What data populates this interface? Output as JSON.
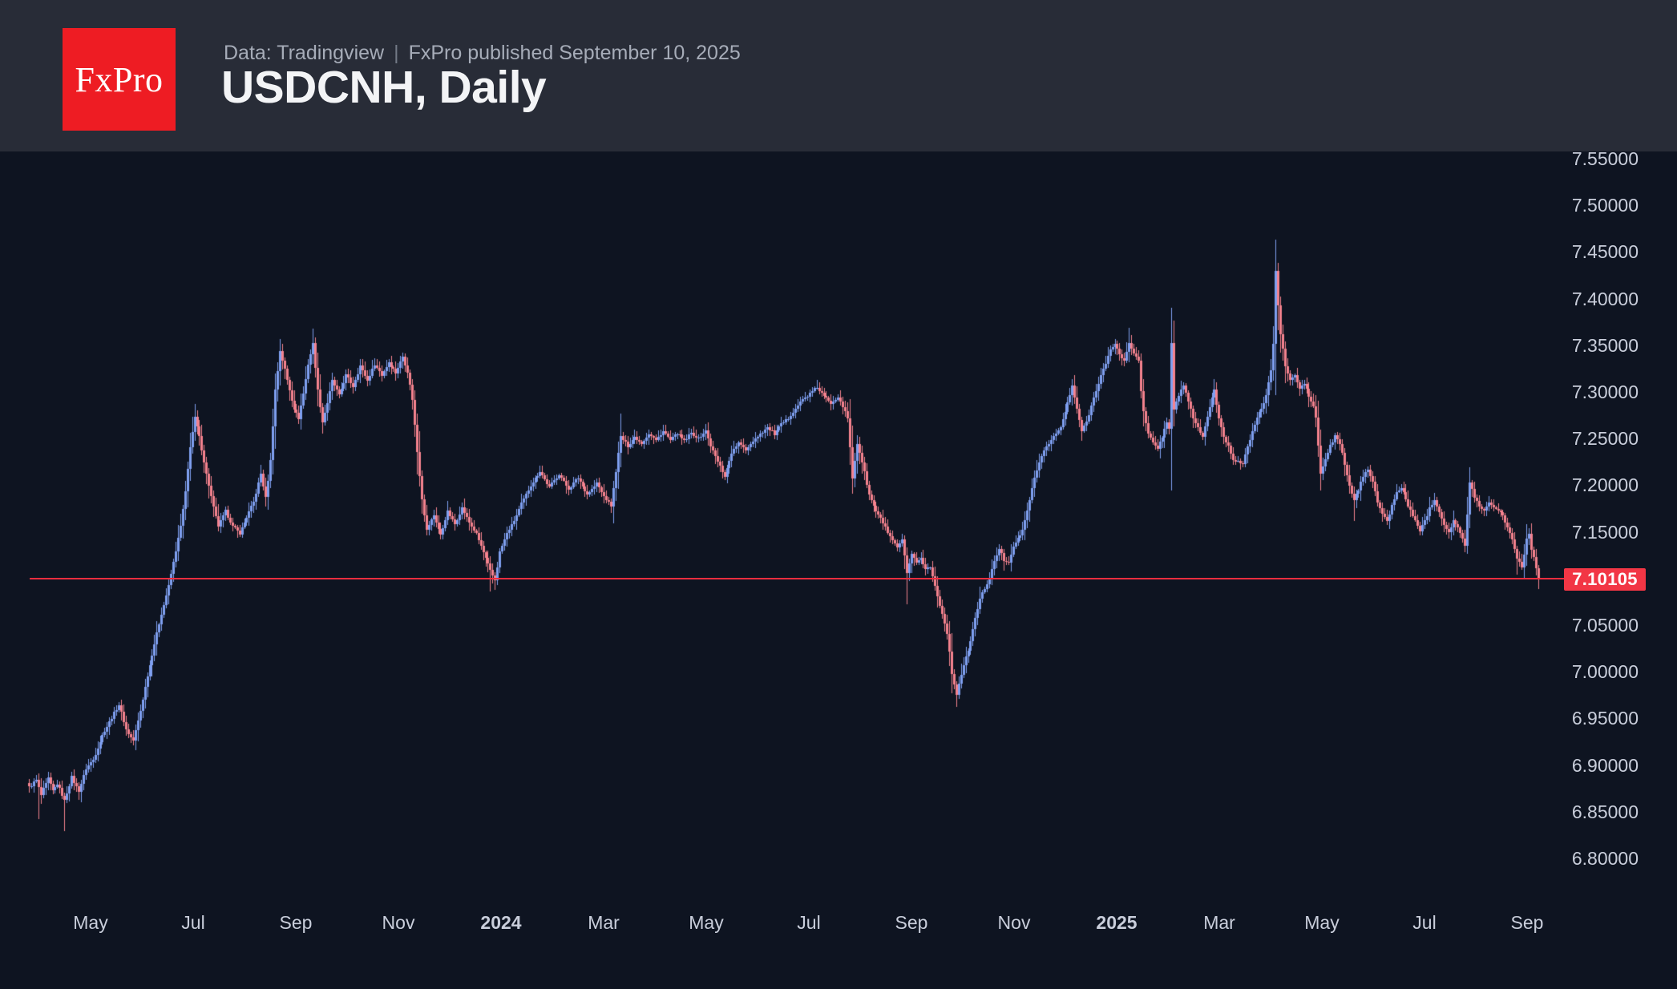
{
  "header": {
    "logo_text": "FxPro",
    "source_line": {
      "part1": "Data: Tradingview",
      "separator": "|",
      "part2": "FxPro published September 10, 2025"
    },
    "title": "USDCNH, Daily"
  },
  "chart_data": {
    "type": "candlestick",
    "symbol": "USDCNH",
    "timeframe": "Daily",
    "grid": "off",
    "legend": "none",
    "colors": {
      "up_candle": "#7f9ff0",
      "down_candle": "#f4828e",
      "price_line": "#ef2d3f",
      "price_tag_bg": "#f23645",
      "axis_text": "#c9cedb",
      "background": "#0e1421",
      "header_bg": "#282c37",
      "logo_bg": "#ee1c23"
    },
    "price_line": {
      "value": 7.10105,
      "label": "7.10105"
    },
    "y_axis": {
      "side": "right",
      "decimals": 5,
      "tick_step": 0.05,
      "ticks": [
        7.55,
        7.5,
        7.45,
        7.4,
        7.35,
        7.3,
        7.25,
        7.2,
        7.15,
        7.05,
        7.0,
        6.95,
        6.9,
        6.85,
        6.8
      ],
      "visible_range": [
        6.78,
        7.57
      ]
    },
    "x_axis": {
      "start_date": "2023-03-27",
      "end_date": "2025-09-10",
      "labels": [
        {
          "label": "May",
          "m": -8,
          "year": false
        },
        {
          "label": "Jul",
          "m": -6,
          "year": false
        },
        {
          "label": "Sep",
          "m": -4,
          "year": false
        },
        {
          "label": "Nov",
          "m": -2,
          "year": false
        },
        {
          "label": "2024",
          "m": 0,
          "year": true
        },
        {
          "label": "Mar",
          "m": 2,
          "year": false
        },
        {
          "label": "May",
          "m": 4,
          "year": false
        },
        {
          "label": "Jul",
          "m": 6,
          "year": false
        },
        {
          "label": "Sep",
          "m": 8,
          "year": false
        },
        {
          "label": "Nov",
          "m": 10,
          "year": false
        },
        {
          "label": "2025",
          "m": 12,
          "year": true
        },
        {
          "label": "Mar",
          "m": 14,
          "year": false
        },
        {
          "label": "May",
          "m": 16,
          "year": false
        },
        {
          "label": "Jul",
          "m": 18,
          "year": false
        },
        {
          "label": "Sep",
          "m": 20,
          "year": false
        }
      ]
    },
    "close_anchors": [
      [
        0,
        6.876
      ],
      [
        3,
        6.884
      ],
      [
        5,
        6.868
      ],
      [
        8,
        6.886
      ],
      [
        10,
        6.872
      ],
      [
        12,
        6.88
      ],
      [
        15,
        6.862
      ],
      [
        18,
        6.887
      ],
      [
        21,
        6.872
      ],
      [
        24,
        6.896
      ],
      [
        27,
        6.906
      ],
      [
        31,
        6.932
      ],
      [
        35,
        6.951
      ],
      [
        38,
        6.965
      ],
      [
        41,
        6.938
      ],
      [
        44,
        6.926
      ],
      [
        47,
        6.958
      ],
      [
        50,
        6.996
      ],
      [
        53,
        7.03
      ],
      [
        56,
        7.062
      ],
      [
        59,
        7.092
      ],
      [
        62,
        7.13
      ],
      [
        64,
        7.156
      ],
      [
        66,
        7.192
      ],
      [
        68,
        7.242
      ],
      [
        70,
        7.272
      ],
      [
        72,
        7.252
      ],
      [
        75,
        7.212
      ],
      [
        78,
        7.176
      ],
      [
        80,
        7.156
      ],
      [
        83,
        7.172
      ],
      [
        86,
        7.156
      ],
      [
        89,
        7.148
      ],
      [
        92,
        7.166
      ],
      [
        95,
        7.182
      ],
      [
        98,
        7.212
      ],
      [
        100,
        7.186
      ],
      [
        102,
        7.226
      ],
      [
        104,
        7.302
      ],
      [
        106,
        7.344
      ],
      [
        108,
        7.324
      ],
      [
        110,
        7.302
      ],
      [
        112,
        7.282
      ],
      [
        114,
        7.272
      ],
      [
        116,
        7.298
      ],
      [
        118,
        7.33
      ],
      [
        120,
        7.352
      ],
      [
        122,
        7.302
      ],
      [
        124,
        7.268
      ],
      [
        126,
        7.288
      ],
      [
        128,
        7.312
      ],
      [
        131,
        7.296
      ],
      [
        134,
        7.318
      ],
      [
        137,
        7.306
      ],
      [
        140,
        7.328
      ],
      [
        143,
        7.312
      ],
      [
        146,
        7.33
      ],
      [
        149,
        7.318
      ],
      [
        152,
        7.332
      ],
      [
        155,
        7.32
      ],
      [
        158,
        7.338
      ],
      [
        160,
        7.322
      ],
      [
        162,
        7.292
      ],
      [
        164,
        7.236
      ],
      [
        166,
        7.186
      ],
      [
        168,
        7.152
      ],
      [
        171,
        7.168
      ],
      [
        174,
        7.146
      ],
      [
        177,
        7.172
      ],
      [
        180,
        7.158
      ],
      [
        183,
        7.176
      ],
      [
        186,
        7.16
      ],
      [
        189,
        7.148
      ],
      [
        192,
        7.128
      ],
      [
        195,
        7.108
      ],
      [
        197,
        7.098
      ],
      [
        199,
        7.128
      ],
      [
        202,
        7.148
      ],
      [
        205,
        7.162
      ],
      [
        208,
        7.18
      ],
      [
        212,
        7.2
      ],
      [
        216,
        7.215
      ],
      [
        220,
        7.198
      ],
      [
        224,
        7.212
      ],
      [
        228,
        7.196
      ],
      [
        232,
        7.208
      ],
      [
        236,
        7.19
      ],
      [
        240,
        7.202
      ],
      [
        243,
        7.188
      ],
      [
        246,
        7.178
      ],
      [
        248,
        7.215
      ],
      [
        250,
        7.252
      ],
      [
        253,
        7.242
      ],
      [
        256,
        7.252
      ],
      [
        259,
        7.245
      ],
      [
        262,
        7.255
      ],
      [
        265,
        7.248
      ],
      [
        268,
        7.258
      ],
      [
        271,
        7.248
      ],
      [
        274,
        7.256
      ],
      [
        277,
        7.247
      ],
      [
        280,
        7.256
      ],
      [
        283,
        7.25
      ],
      [
        286,
        7.258
      ],
      [
        288,
        7.242
      ],
      [
        291,
        7.225
      ],
      [
        294,
        7.21
      ],
      [
        297,
        7.235
      ],
      [
        300,
        7.245
      ],
      [
        303,
        7.238
      ],
      [
        306,
        7.248
      ],
      [
        309,
        7.255
      ],
      [
        312,
        7.262
      ],
      [
        315,
        7.255
      ],
      [
        318,
        7.265
      ],
      [
        321,
        7.272
      ],
      [
        324,
        7.282
      ],
      [
        327,
        7.292
      ],
      [
        330,
        7.298
      ],
      [
        333,
        7.305
      ],
      [
        336,
        7.295
      ],
      [
        339,
        7.288
      ],
      [
        342,
        7.295
      ],
      [
        344,
        7.285
      ],
      [
        346,
        7.272
      ],
      [
        348,
        7.208
      ],
      [
        350,
        7.245
      ],
      [
        352,
        7.225
      ],
      [
        355,
        7.19
      ],
      [
        358,
        7.172
      ],
      [
        361,
        7.16
      ],
      [
        364,
        7.144
      ],
      [
        367,
        7.132
      ],
      [
        369,
        7.142
      ],
      [
        371,
        7.105
      ],
      [
        373,
        7.125
      ],
      [
        375,
        7.118
      ],
      [
        377,
        7.122
      ],
      [
        379,
        7.11
      ],
      [
        381,
        7.112
      ],
      [
        384,
        7.082
      ],
      [
        386,
        7.062
      ],
      [
        388,
        7.042
      ],
      [
        390,
        6.998
      ],
      [
        392,
        6.976
      ],
      [
        394,
        6.998
      ],
      [
        396,
        7.015
      ],
      [
        398,
        7.032
      ],
      [
        400,
        7.058
      ],
      [
        402,
        7.078
      ],
      [
        404,
        7.09
      ],
      [
        406,
        7.1
      ],
      [
        408,
        7.118
      ],
      [
        410,
        7.132
      ],
      [
        412,
        7.12
      ],
      [
        414,
        7.118
      ],
      [
        416,
        7.135
      ],
      [
        418,
        7.142
      ],
      [
        420,
        7.152
      ],
      [
        422,
        7.172
      ],
      [
        424,
        7.198
      ],
      [
        426,
        7.215
      ],
      [
        428,
        7.232
      ],
      [
        430,
        7.242
      ],
      [
        433,
        7.252
      ],
      [
        436,
        7.262
      ],
      [
        439,
        7.288
      ],
      [
        441,
        7.306
      ],
      [
        443,
        7.282
      ],
      [
        445,
        7.258
      ],
      [
        447,
        7.268
      ],
      [
        449,
        7.285
      ],
      [
        451,
        7.302
      ],
      [
        453,
        7.318
      ],
      [
        455,
        7.33
      ],
      [
        457,
        7.345
      ],
      [
        459,
        7.352
      ],
      [
        461,
        7.34
      ],
      [
        463,
        7.333
      ],
      [
        465,
        7.352
      ],
      [
        467,
        7.342
      ],
      [
        469,
        7.335
      ],
      [
        470,
        7.3
      ],
      [
        471,
        7.278
      ],
      [
        473,
        7.255
      ],
      [
        475,
        7.245
      ],
      [
        477,
        7.24
      ],
      [
        479,
        7.252
      ],
      [
        481,
        7.268
      ],
      [
        482,
        7.262
      ],
      [
        483,
        7.352
      ],
      [
        484,
        7.282
      ],
      [
        486,
        7.295
      ],
      [
        488,
        7.308
      ],
      [
        490,
        7.29
      ],
      [
        492,
        7.272
      ],
      [
        494,
        7.262
      ],
      [
        496,
        7.252
      ],
      [
        498,
        7.272
      ],
      [
        500,
        7.295
      ],
      [
        501,
        7.302
      ],
      [
        503,
        7.272
      ],
      [
        505,
        7.252
      ],
      [
        507,
        7.242
      ],
      [
        509,
        7.228
      ],
      [
        511,
        7.225
      ],
      [
        513,
        7.222
      ],
      [
        515,
        7.242
      ],
      [
        517,
        7.258
      ],
      [
        519,
        7.272
      ],
      [
        521,
        7.282
      ],
      [
        523,
        7.295
      ],
      [
        525,
        7.325
      ],
      [
        526,
        7.352
      ],
      [
        527,
        7.43
      ],
      [
        528,
        7.392
      ],
      [
        529,
        7.362
      ],
      [
        530,
        7.345
      ],
      [
        531,
        7.328
      ],
      [
        533,
        7.312
      ],
      [
        535,
        7.318
      ],
      [
        537,
        7.303
      ],
      [
        539,
        7.31
      ],
      [
        541,
        7.295
      ],
      [
        543,
        7.285
      ],
      [
        544,
        7.272
      ],
      [
        546,
        7.212
      ],
      [
        548,
        7.228
      ],
      [
        550,
        7.242
      ],
      [
        552,
        7.252
      ],
      [
        554,
        7.245
      ],
      [
        556,
        7.222
      ],
      [
        558,
        7.198
      ],
      [
        560,
        7.185
      ],
      [
        562,
        7.195
      ],
      [
        564,
        7.21
      ],
      [
        566,
        7.218
      ],
      [
        568,
        7.205
      ],
      [
        570,
        7.182
      ],
      [
        572,
        7.168
      ],
      [
        574,
        7.162
      ],
      [
        576,
        7.178
      ],
      [
        578,
        7.192
      ],
      [
        580,
        7.198
      ],
      [
        582,
        7.185
      ],
      [
        584,
        7.172
      ],
      [
        586,
        7.162
      ],
      [
        588,
        7.152
      ],
      [
        590,
        7.162
      ],
      [
        592,
        7.175
      ],
      [
        594,
        7.185
      ],
      [
        596,
        7.172
      ],
      [
        598,
        7.158
      ],
      [
        600,
        7.15
      ],
      [
        602,
        7.162
      ],
      [
        604,
        7.155
      ],
      [
        606,
        7.142
      ],
      [
        607,
        7.135
      ],
      [
        609,
        7.202
      ],
      [
        611,
        7.188
      ],
      [
        613,
        7.178
      ],
      [
        615,
        7.172
      ],
      [
        617,
        7.182
      ],
      [
        619,
        7.178
      ],
      [
        621,
        7.172
      ],
      [
        623,
        7.168
      ],
      [
        625,
        7.155
      ],
      [
        627,
        7.142
      ],
      [
        629,
        7.122
      ],
      [
        631,
        7.112
      ],
      [
        633,
        7.142
      ],
      [
        634,
        7.148
      ],
      [
        635,
        7.132
      ],
      [
        636,
        7.122
      ],
      [
        637,
        7.112
      ],
      [
        638,
        7.101
      ]
    ],
    "wick_extremes": [
      {
        "i": 4,
        "low": 6.842
      },
      {
        "i": 15,
        "low": 6.829
      },
      {
        "i": 70,
        "high": 7.287
      },
      {
        "i": 106,
        "high": 7.353
      },
      {
        "i": 120,
        "high": 7.368
      },
      {
        "i": 124,
        "low": 7.255
      },
      {
        "i": 195,
        "low": 7.086
      },
      {
        "i": 197,
        "low": 7.088
      },
      {
        "i": 250,
        "high": 7.277
      },
      {
        "i": 333,
        "high": 7.313
      },
      {
        "i": 371,
        "low": 7.072
      },
      {
        "i": 392,
        "low": 6.967
      },
      {
        "i": 465,
        "high": 7.369
      },
      {
        "i": 483,
        "high": 7.362
      },
      {
        "i": 527,
        "high": 7.4297
      },
      {
        "i": 560,
        "low": 7.162
      },
      {
        "i": 607,
        "low": 7.128
      },
      {
        "i": 629,
        "low": 7.104
      },
      {
        "i": 638,
        "low": 7.099
      }
    ]
  }
}
